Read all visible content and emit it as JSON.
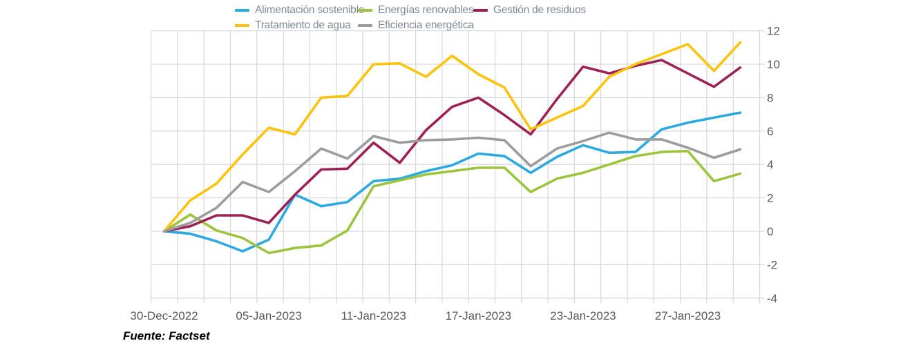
{
  "colors": {
    "background": "#FFFFFF",
    "grid": "#D9D9D9",
    "axis_text": "#595959",
    "legend_text": "#7D8A96",
    "blue": "#2BA9E0",
    "green": "#9AC53C",
    "maroon": "#9E2155",
    "yellow": "#FDC30B",
    "gray": "#9C9C9C"
  },
  "chart_data": {
    "type": "line",
    "title": "",
    "xlabel": "",
    "ylabel": "",
    "ylim": [
      -4,
      12
    ],
    "grid": true,
    "legend_position": "top",
    "y_axis_side": "right",
    "y_ticks": [
      12,
      10,
      8,
      6,
      4,
      2,
      0,
      -2,
      -4
    ],
    "n_points": 23,
    "x_tick_labels": [
      "30-Dec-2022",
      "05-Jan-2023",
      "11-Jan-2023",
      "17-Jan-2023",
      "23-Jan-2023",
      "27-Jan-2023"
    ],
    "x_tick_indices": [
      0,
      4,
      8,
      12,
      16,
      20
    ],
    "series": [
      {
        "name": "Alimentación sostenible",
        "color": "#2BA9E0",
        "values": [
          0,
          -0.15,
          -0.6,
          -1.2,
          -0.5,
          2.2,
          1.5,
          1.75,
          3.0,
          3.15,
          3.6,
          3.95,
          4.65,
          4.5,
          3.5,
          4.45,
          5.15,
          4.7,
          4.75,
          6.1,
          6.5,
          6.8,
          7.1
        ]
      },
      {
        "name": "Energías renovables",
        "color": "#9AC53C",
        "values": [
          0,
          1.0,
          0.05,
          -0.4,
          -1.3,
          -1.0,
          -0.85,
          0.05,
          2.7,
          3.05,
          3.4,
          3.6,
          3.8,
          3.8,
          2.35,
          3.15,
          3.5,
          4.0,
          4.5,
          4.75,
          4.8,
          3.0,
          3.45
        ]
      },
      {
        "name": "Gestión de residuos",
        "color": "#9E2155",
        "values": [
          0,
          0.3,
          0.95,
          0.95,
          0.5,
          2.2,
          3.7,
          3.75,
          5.3,
          4.1,
          6.05,
          7.45,
          8.0,
          6.95,
          5.8,
          7.9,
          9.85,
          9.45,
          9.9,
          10.25,
          9.45,
          8.65,
          9.8
        ]
      },
      {
        "name": "Tratamiento de agua",
        "color": "#FDC30B",
        "values": [
          0,
          1.85,
          2.85,
          4.6,
          6.2,
          5.8,
          8.0,
          8.1,
          10.0,
          10.05,
          9.25,
          10.5,
          9.4,
          8.6,
          6.1,
          6.8,
          7.5,
          9.25,
          10.0,
          10.6,
          11.2,
          9.6,
          11.3
        ]
      },
      {
        "name": "Eficiencia energética",
        "color": "#9C9C9C",
        "values": [
          0,
          0.5,
          1.4,
          2.95,
          2.35,
          3.6,
          4.95,
          4.35,
          5.7,
          5.3,
          5.45,
          5.5,
          5.6,
          5.45,
          3.9,
          4.95,
          5.4,
          5.9,
          5.5,
          5.5,
          5.0,
          4.4,
          4.9
        ]
      }
    ],
    "source": "Fuente: Factset"
  }
}
